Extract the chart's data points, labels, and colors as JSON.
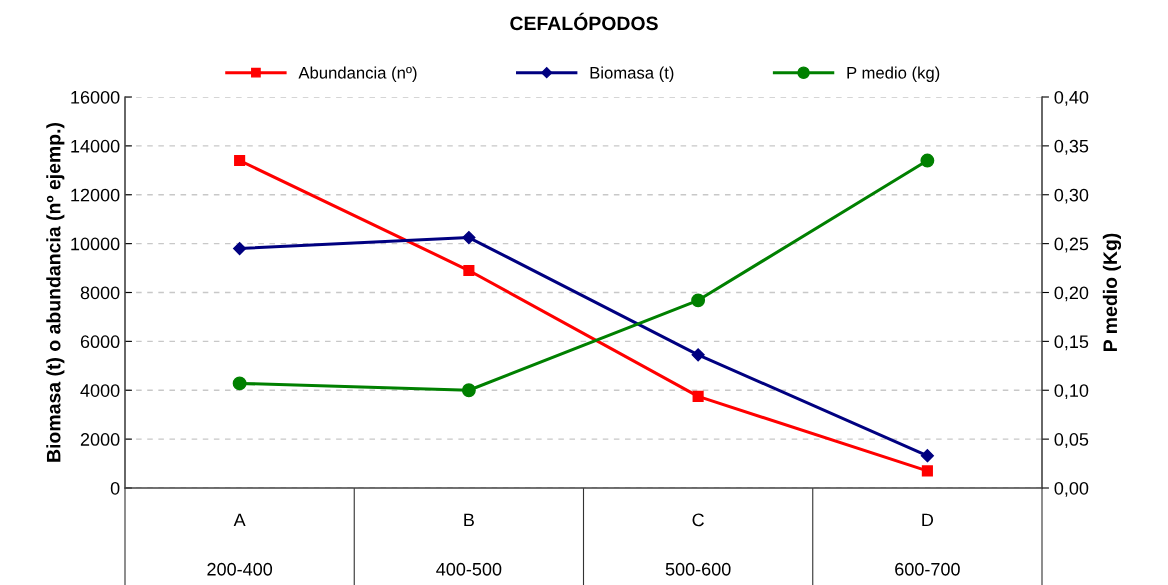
{
  "chart_data": {
    "type": "line",
    "title": "CEFALÓPODOS",
    "categories": [
      "A\n\n200-400",
      "B\n\n400-500",
      "C\n\n500-600",
      "D\n\n600-700"
    ],
    "ylabel": "Biomasa (t) o abundancia (nº ejemp.)",
    "y2label": "P medio (Kg)",
    "ylim": [
      0,
      16000
    ],
    "yticks": [
      0,
      2000,
      4000,
      6000,
      8000,
      10000,
      12000,
      14000,
      16000
    ],
    "y2lim": [
      0,
      0.4
    ],
    "y2ticks": [
      {
        "value": 0,
        "label": "0,00"
      },
      {
        "value": 0.05,
        "label": "0,05"
      },
      {
        "value": 0.1,
        "label": "0,10"
      },
      {
        "value": 0.15,
        "label": "0,15"
      },
      {
        "value": 0.2,
        "label": "0,20"
      },
      {
        "value": 0.25,
        "label": "0,25"
      },
      {
        "value": 0.3,
        "label": "0,30"
      },
      {
        "value": 0.35,
        "label": "0,35"
      },
      {
        "value": 0.4,
        "label": "0,40"
      }
    ],
    "grid": "y",
    "legend": "top",
    "series": [
      {
        "name": "Abundancia (nº)",
        "color": "#ff0000",
        "marker": "square",
        "values": [
          13400,
          8900,
          3750,
          700
        ]
      },
      {
        "name": "Biomasa (t)",
        "color": "#000080",
        "marker": "diamond",
        "values": [
          9800,
          10250,
          5450,
          1320
        ]
      },
      {
        "name": "P medio (kg)",
        "color": "#008000",
        "marker": "circle",
        "axis": "y2",
        "values": [
          0.107,
          0.1,
          0.192,
          0.335
        ]
      }
    ]
  }
}
